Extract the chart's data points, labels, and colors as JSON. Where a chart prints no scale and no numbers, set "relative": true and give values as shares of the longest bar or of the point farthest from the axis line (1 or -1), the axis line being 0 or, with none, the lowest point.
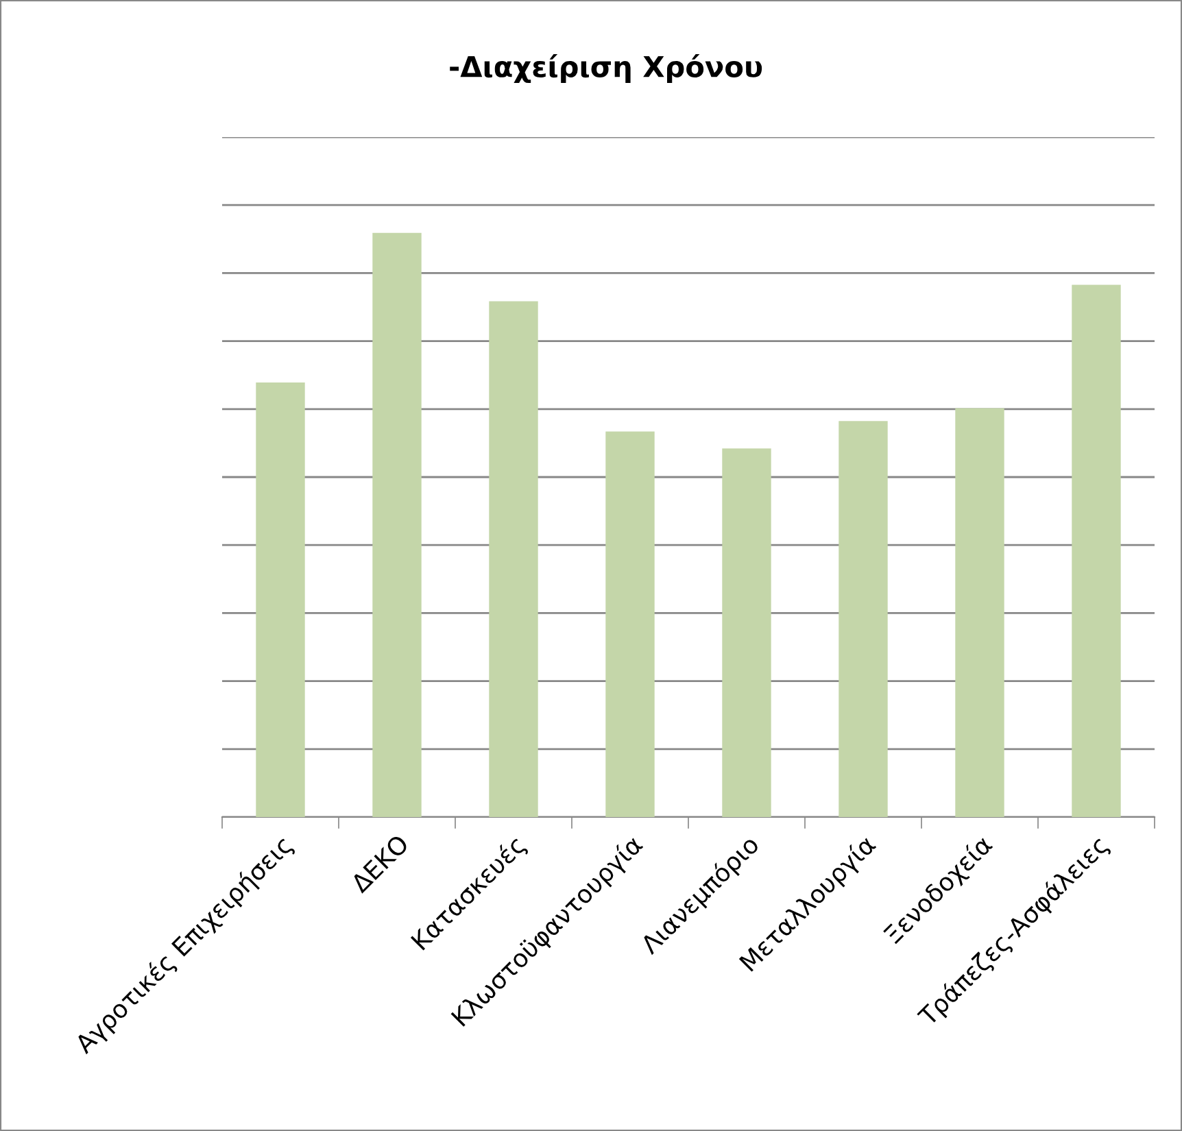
{
  "chart_data": {
    "type": "bar",
    "title": "-Διαχείριση Χρόνου",
    "relative": true,
    "grid": "y",
    "categories": [
      "Αγροτικές Επιχειρήσεις",
      "ΔΕΚΟ",
      "Κατασκευές",
      "Κλωστοϋφαντουργία",
      "Λιανεμπόριο",
      "Μεταλλουργία",
      "Ξενοδοχεία",
      "Τράπεζες-Ασφάλειες"
    ],
    "values": [
      0.744,
      1,
      0.883,
      0.66,
      0.631,
      0.678,
      0.7,
      0.911
    ],
    "color": "#c4d6a9"
  }
}
